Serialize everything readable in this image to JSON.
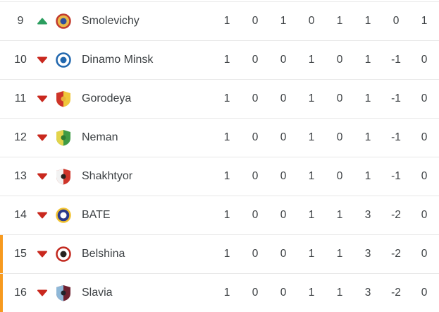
{
  "colors": {
    "background": "#ffffff",
    "divider": "#e8e8e8",
    "text_primary": "#3c4043",
    "up_arrow": "#2b9e5f",
    "down_arrow": "#c9281e",
    "relegation_bar": "#f79a1f"
  },
  "standings": {
    "rows": [
      {
        "rank": "9",
        "movement": "up",
        "team": "Smolevichy",
        "crest": "smolevichy-crest-icon",
        "crest_shape": "circle",
        "crest_colors": [
          "#e9b949",
          "#c23a2e",
          "#2d4e9e"
        ],
        "relegation": false,
        "stats": [
          "1",
          "0",
          "1",
          "0",
          "1",
          "1",
          "0",
          "1"
        ]
      },
      {
        "rank": "10",
        "movement": "down",
        "team": "Dinamo Minsk",
        "crest": "dinamo-minsk-crest-icon",
        "crest_shape": "circle",
        "crest_colors": [
          "#ffffff",
          "#2167ae",
          "#2167ae"
        ],
        "relegation": false,
        "stats": [
          "1",
          "0",
          "0",
          "1",
          "0",
          "1",
          "-1",
          "0"
        ]
      },
      {
        "rank": "11",
        "movement": "down",
        "team": "Gorodeya",
        "crest": "gorodeya-crest-icon",
        "crest_shape": "shield",
        "crest_colors": [
          "#ce3429",
          "#efc73b",
          "#e9b23a"
        ],
        "relegation": false,
        "stats": [
          "1",
          "0",
          "0",
          "1",
          "0",
          "1",
          "-1",
          "0"
        ]
      },
      {
        "rank": "12",
        "movement": "down",
        "team": "Neman",
        "crest": "neman-crest-icon",
        "crest_shape": "shield",
        "crest_colors": [
          "#e3d44b",
          "#3f9b45",
          "#2e7d32"
        ],
        "relegation": false,
        "stats": [
          "1",
          "0",
          "0",
          "1",
          "0",
          "1",
          "-1",
          "0"
        ]
      },
      {
        "rank": "13",
        "movement": "down",
        "team": "Shakhtyor",
        "crest": "shakhtyor-crest-icon",
        "crest_shape": "shield",
        "crest_colors": [
          "#f2f2f2",
          "#ce3429",
          "#26221f"
        ],
        "relegation": false,
        "stats": [
          "1",
          "0",
          "0",
          "1",
          "0",
          "1",
          "-1",
          "0"
        ]
      },
      {
        "rank": "14",
        "movement": "down",
        "team": "BATE",
        "crest": "bate-crest-icon",
        "crest_shape": "circle",
        "crest_colors": [
          "#2a3a8c",
          "#f2c230",
          "#ffffff"
        ],
        "relegation": false,
        "stats": [
          "1",
          "0",
          "0",
          "1",
          "1",
          "3",
          "-2",
          "0"
        ]
      },
      {
        "rank": "15",
        "movement": "down",
        "team": "Belshina",
        "crest": "belshina-crest-icon",
        "crest_shape": "circle",
        "crest_colors": [
          "#ffffff",
          "#c2281e",
          "#26221f"
        ],
        "relegation": true,
        "stats": [
          "1",
          "0",
          "0",
          "1",
          "1",
          "3",
          "-2",
          "0"
        ]
      },
      {
        "rank": "16",
        "movement": "down",
        "team": "Slavia",
        "crest": "slavia-crest-icon",
        "crest_shape": "shield",
        "crest_colors": [
          "#8fb8d8",
          "#6e2230",
          "#20232a"
        ],
        "relegation": true,
        "stats": [
          "1",
          "0",
          "0",
          "1",
          "1",
          "3",
          "-2",
          "0"
        ]
      }
    ]
  }
}
